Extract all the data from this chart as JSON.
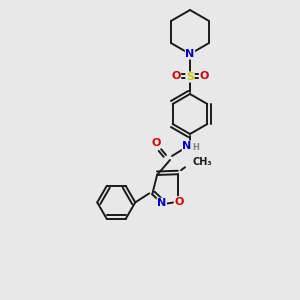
{
  "bg_color": "#e8e8e8",
  "bond_color": "#1a1a1a",
  "line_width": 1.4,
  "atom_colors": {
    "N": "#0000cc",
    "O": "#dd0000",
    "S": "#cccc00",
    "H": "#778888",
    "C": "#1a1a1a"
  },
  "font_size": 8,
  "fig_size": [
    3.0,
    3.0
  ],
  "dpi": 100
}
